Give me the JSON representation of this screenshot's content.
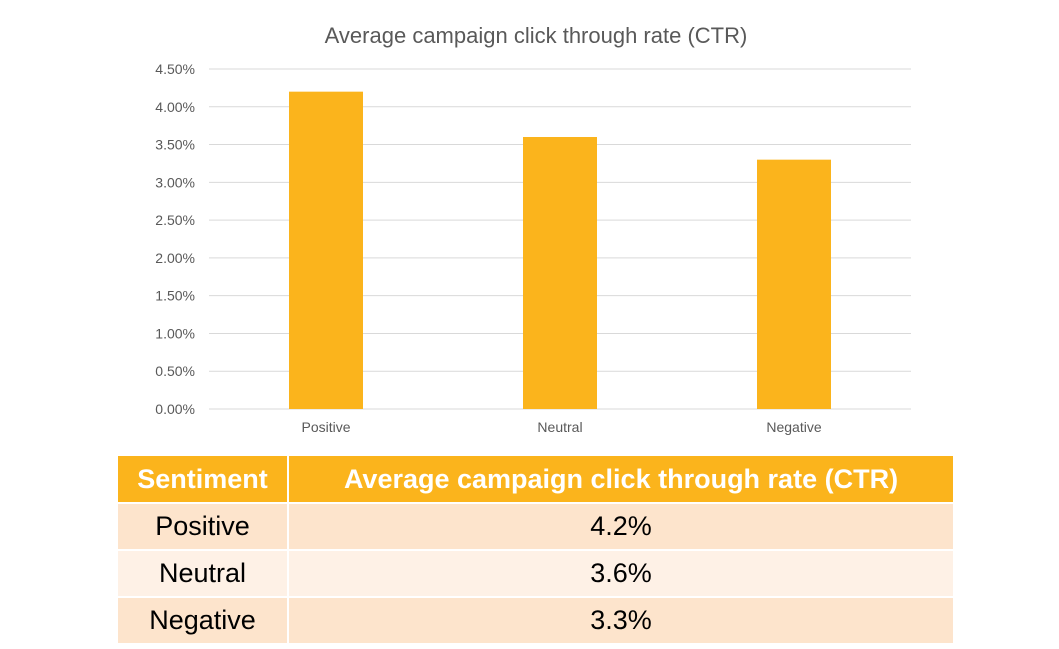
{
  "chart_data": {
    "type": "bar",
    "title": "Average campaign click through rate (CTR)",
    "categories": [
      "Positive",
      "Neutral",
      "Negative"
    ],
    "values": [
      4.2,
      3.6,
      3.3
    ],
    "y_ticks": [
      "0.00%",
      "0.50%",
      "1.00%",
      "1.50%",
      "2.00%",
      "2.50%",
      "3.00%",
      "3.50%",
      "4.00%",
      "4.50%"
    ],
    "ylim": [
      0,
      4.5
    ],
    "xlabel": "",
    "ylabel": "",
    "grid": true,
    "bar_color": "#FBB41C"
  },
  "table": {
    "headers": [
      "Sentiment",
      "Average campaign click through rate (CTR)"
    ],
    "rows": [
      {
        "sentiment": "Positive",
        "ctr": "4.2%"
      },
      {
        "sentiment": "Neutral",
        "ctr": "3.6%"
      },
      {
        "sentiment": "Negative",
        "ctr": "3.3%"
      }
    ],
    "header_color": "#FBB41C"
  }
}
